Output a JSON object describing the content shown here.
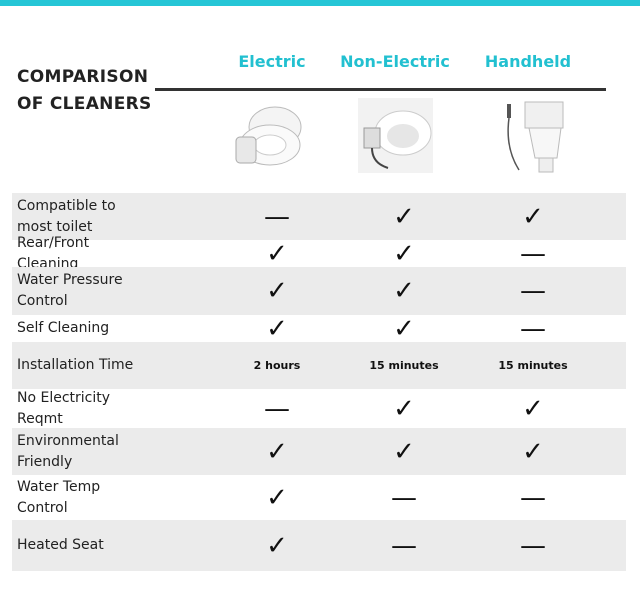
{
  "header": {
    "title": "COMPARISON OF CLEANERS",
    "columns": [
      "Electric",
      "Non-Electric",
      "Handheld"
    ]
  },
  "table": {
    "rows": [
      [
        "Compatible to most toilet",
        "—",
        "✓",
        "✓"
      ],
      [
        "Rear/Front Cleaning",
        "✓",
        "✓",
        "—"
      ],
      [
        "Water Pressure Control",
        "✓",
        "✓",
        "—"
      ],
      [
        "Self Cleaning",
        "✓",
        "✓",
        "—"
      ],
      [
        "Installation Time",
        "2 hours",
        "15 minutes",
        "15 minutes"
      ],
      [
        "No Electricity Reqmt",
        "—",
        "✓",
        "✓"
      ],
      [
        "Environmental Friendly",
        "✓",
        "✓",
        "✓"
      ],
      [
        "Water Temp Control",
        "✓",
        "—",
        "—"
      ],
      [
        "Heated Seat",
        "✓",
        "—",
        "—"
      ]
    ]
  }
}
